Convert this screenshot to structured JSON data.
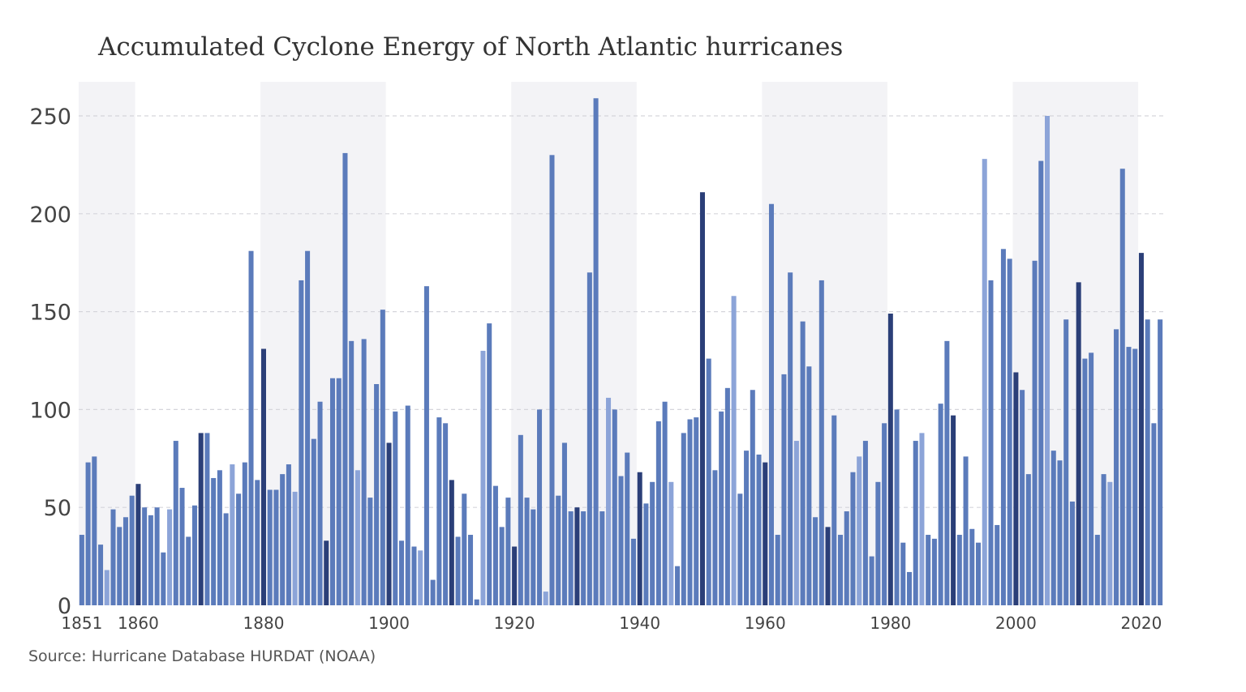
{
  "title": "Accumulated Cyclone Energy of North Atlantic hurricanes",
  "source": "Source: Hurricane Database HURDAT (NOAA)",
  "colors": {
    "band": "#f3f3f6",
    "grid": "#d5d5db",
    "bar_light": "#8ca4d8",
    "bar_mid": "#5b7bbb",
    "bar_dark": "#2b3f78"
  },
  "chart_data": {
    "type": "bar",
    "title": "Accumulated Cyclone Energy of North Atlantic hurricanes",
    "xlabel": "",
    "ylabel": "",
    "ylim": [
      0,
      265
    ],
    "xlim": [
      1851,
      2023
    ],
    "grid": true,
    "yticks": [
      0,
      50,
      100,
      150,
      200,
      250
    ],
    "xticks": [
      {
        "year": 1851,
        "label": "1851"
      },
      {
        "year": 1860,
        "label": "1860"
      },
      {
        "year": 1880,
        "label": "1880"
      },
      {
        "year": 1900,
        "label": "1900"
      },
      {
        "year": 1920,
        "label": "1920"
      },
      {
        "year": 1940,
        "label": "1940"
      },
      {
        "year": 1960,
        "label": "1960"
      },
      {
        "year": 1980,
        "label": "1980"
      },
      {
        "year": 2000,
        "label": "2000"
      },
      {
        "year": 2020,
        "label": "2020"
      }
    ],
    "shaded_periods": [
      [
        1851,
        1860
      ],
      [
        1880,
        1900
      ],
      [
        1920,
        1940
      ],
      [
        1960,
        1980
      ],
      [
        2000,
        2020
      ]
    ],
    "start_year": 1851,
    "values": [
      36,
      73,
      76,
      31,
      18,
      49,
      40,
      45,
      56,
      62,
      50,
      46,
      50,
      27,
      49,
      84,
      60,
      35,
      51,
      88,
      88,
      65,
      69,
      47,
      72,
      57,
      73,
      181,
      64,
      131,
      59,
      59,
      67,
      72,
      58,
      166,
      181,
      85,
      104,
      33,
      116,
      116,
      231,
      135,
      69,
      136,
      55,
      113,
      151,
      83,
      99,
      33,
      102,
      30,
      28,
      163,
      13,
      96,
      93,
      64,
      35,
      57,
      36,
      3,
      130,
      144,
      61,
      40,
      55,
      30,
      87,
      55,
      49,
      100,
      7,
      230,
      56,
      83,
      48,
      50,
      48,
      170,
      259,
      48,
      106,
      100,
      66,
      78,
      34,
      68,
      52,
      63,
      94,
      104,
      63,
      20,
      88,
      95,
      96,
      211,
      126,
      69,
      99,
      111,
      158,
      57,
      79,
      110,
      77,
      73,
      205,
      36,
      118,
      170,
      84,
      145,
      122,
      45,
      166,
      40,
      97,
      36,
      48,
      68,
      76,
      84,
      25,
      63,
      93,
      149,
      100,
      32,
      17,
      84,
      88,
      36,
      34,
      103,
      135,
      97,
      36,
      76,
      39,
      32,
      228,
      166,
      41,
      182,
      177,
      119,
      110,
      67,
      176,
      227,
      250,
      79,
      74,
      146,
      53,
      165,
      126,
      129,
      36,
      67,
      63,
      141,
      223,
      132,
      131,
      180,
      146,
      93,
      146
    ],
    "shades": [
      "m",
      "m",
      "m",
      "m",
      "l",
      "m",
      "m",
      "m",
      "m",
      "d",
      "m",
      "m",
      "m",
      "m",
      "l",
      "m",
      "m",
      "m",
      "m",
      "d",
      "m",
      "m",
      "m",
      "m",
      "l",
      "m",
      "m",
      "m",
      "m",
      "d",
      "m",
      "m",
      "m",
      "m",
      "l",
      "m",
      "m",
      "m",
      "m",
      "d",
      "m",
      "m",
      "m",
      "m",
      "l",
      "m",
      "m",
      "m",
      "m",
      "d",
      "m",
      "m",
      "m",
      "m",
      "l",
      "m",
      "m",
      "m",
      "m",
      "d",
      "m",
      "m",
      "m",
      "m",
      "l",
      "m",
      "m",
      "m",
      "m",
      "d",
      "m",
      "m",
      "m",
      "m",
      "l",
      "m",
      "m",
      "m",
      "m",
      "d",
      "m",
      "m",
      "m",
      "m",
      "l",
      "m",
      "m",
      "m",
      "m",
      "d",
      "m",
      "m",
      "m",
      "m",
      "l",
      "m",
      "m",
      "m",
      "m",
      "d",
      "m",
      "m",
      "m",
      "m",
      "l",
      "m",
      "m",
      "m",
      "m",
      "d",
      "m",
      "m",
      "m",
      "m",
      "l",
      "m",
      "m",
      "m",
      "m",
      "d",
      "m",
      "m",
      "m",
      "m",
      "l",
      "m",
      "m",
      "m",
      "m",
      "d",
      "m",
      "m",
      "m",
      "m",
      "l",
      "m",
      "m",
      "m",
      "m",
      "d",
      "m",
      "m",
      "m",
      "m",
      "l",
      "m",
      "m",
      "m",
      "m",
      "d",
      "m",
      "m",
      "m",
      "m",
      "l",
      "m",
      "m",
      "m",
      "m",
      "d",
      "m",
      "m",
      "m",
      "m",
      "l",
      "m",
      "m",
      "m",
      "m",
      "d",
      "m",
      "m",
      "m"
    ]
  }
}
